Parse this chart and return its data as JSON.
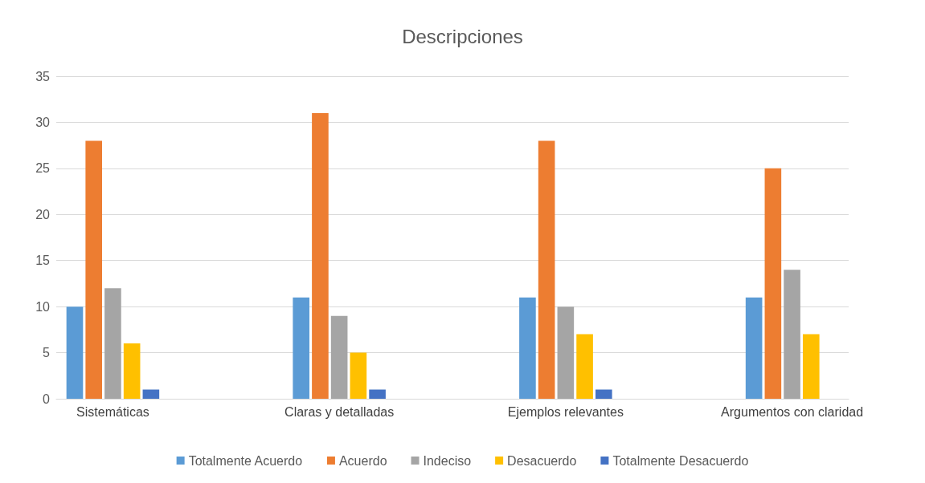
{
  "chart_data": {
    "type": "bar",
    "title": "Descripciones",
    "categories": [
      "Sistemáticas",
      null,
      "Claras y detalladas",
      null,
      "Ejemplos relevantes",
      null,
      "Argumentos con claridad"
    ],
    "series": [
      {
        "name": "Totalmente Acuerdo",
        "color": "#5b9bd5",
        "values": [
          10,
          0,
          11,
          0,
          11,
          0,
          11
        ]
      },
      {
        "name": "Acuerdo",
        "color": "#ed7d31",
        "values": [
          28,
          0,
          31,
          0,
          28,
          0,
          25
        ]
      },
      {
        "name": "Indeciso",
        "color": "#a5a5a5",
        "values": [
          12,
          0,
          9,
          0,
          10,
          0,
          14
        ]
      },
      {
        "name": "Desacuerdo",
        "color": "#ffc000",
        "values": [
          6,
          0,
          5,
          0,
          7,
          0,
          7
        ]
      },
      {
        "name": "Totalmente Desacuerdo",
        "color": "#4472c4",
        "values": [
          1,
          0,
          1,
          0,
          1,
          0,
          0
        ]
      }
    ],
    "ylim": [
      0,
      35
    ],
    "yticks": [
      0,
      5,
      10,
      15,
      20,
      25,
      30,
      35
    ],
    "grid": "y",
    "legend": "bottom"
  }
}
